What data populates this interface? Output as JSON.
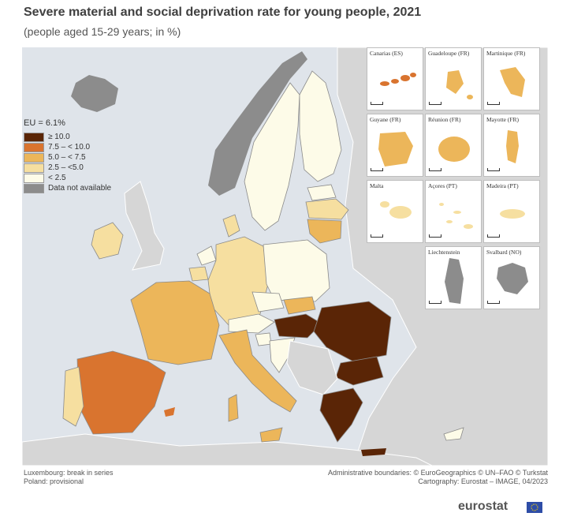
{
  "header": {
    "title": "Severe material and social deprivation rate for young people, 2021",
    "subtitle": "(people aged 15-29 years; in %)"
  },
  "legend": {
    "title": "EU = 6.1%",
    "classes": [
      {
        "label": "≥ 10.0",
        "color": "#5a2506"
      },
      {
        "label": "7.5 – < 10.0",
        "color": "#d9742f"
      },
      {
        "label": "5.0 – < 7.5",
        "color": "#ecb65a"
      },
      {
        "label": "2.5 – <5.0",
        "color": "#f6dfa0"
      },
      {
        "label": "< 2.5",
        "color": "#fdfbe8"
      },
      {
        "label": "Data not available",
        "color": "#8c8c8c"
      }
    ]
  },
  "insets": [
    {
      "label": "Canarias (ES)",
      "color": "#d9742f"
    },
    {
      "label": "Guadeloupe (FR)",
      "color": "#ecb65a"
    },
    {
      "label": "Martinique (FR)",
      "color": "#ecb65a"
    },
    {
      "label": "Guyane (FR)",
      "color": "#ecb65a"
    },
    {
      "label": "Réunion (FR)",
      "color": "#ecb65a"
    },
    {
      "label": "Mayotte (FR)",
      "color": "#ecb65a"
    },
    {
      "label": "Malta",
      "color": "#f6dfa0"
    },
    {
      "label": "Açores (PT)",
      "color": "#f6dfa0"
    },
    {
      "label": "Madeira (PT)",
      "color": "#f6dfa0"
    },
    {
      "label": "Liechtenstein",
      "color": "#8c8c8c"
    },
    {
      "label": "Svalbard (NO)",
      "color": "#8c8c8c"
    }
  ],
  "notes": {
    "left": [
      "Luxembourg: break in series",
      "Poland: provisional"
    ],
    "right": [
      "Administrative boundaries: © EuroGeographics © UN–FAO © Turkstat",
      "Cartography: Eurostat – IMAGE, 04/2023"
    ]
  },
  "branding": {
    "logo_text": "eurostat"
  }
}
